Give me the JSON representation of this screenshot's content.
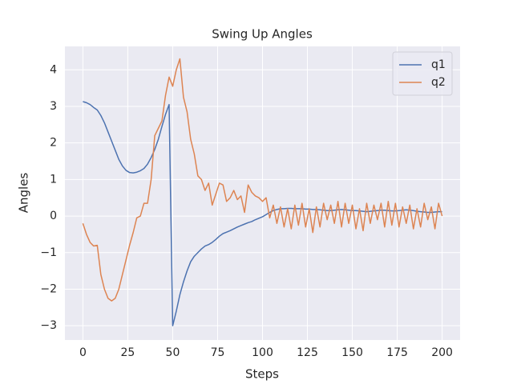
{
  "chart_data": {
    "type": "line",
    "title": "Swing Up Angles",
    "x_label": "Steps",
    "y_label": "Angles",
    "x": [
      0,
      2,
      4,
      6,
      8,
      10,
      12,
      14,
      16,
      18,
      20,
      22,
      24,
      26,
      28,
      30,
      32,
      34,
      36,
      38,
      40,
      42,
      44,
      46,
      48,
      50,
      52,
      54,
      56,
      58,
      60,
      62,
      64,
      66,
      68,
      70,
      72,
      74,
      76,
      78,
      80,
      82,
      84,
      86,
      88,
      90,
      92,
      94,
      96,
      98,
      100,
      102,
      104,
      106,
      108,
      110,
      112,
      114,
      116,
      118,
      120,
      122,
      124,
      126,
      128,
      130,
      132,
      134,
      136,
      138,
      140,
      142,
      144,
      146,
      148,
      150,
      152,
      154,
      156,
      158,
      160,
      162,
      164,
      166,
      168,
      170,
      172,
      174,
      176,
      178,
      180,
      182,
      184,
      186,
      188,
      190,
      192,
      194,
      196,
      198,
      200
    ],
    "series": [
      {
        "name": "q1",
        "color": "#4c72b0",
        "values": [
          3.13,
          3.1,
          3.05,
          2.97,
          2.9,
          2.75,
          2.55,
          2.3,
          2.05,
          1.8,
          1.55,
          1.37,
          1.25,
          1.19,
          1.18,
          1.2,
          1.24,
          1.3,
          1.42,
          1.6,
          1.82,
          2.1,
          2.45,
          2.78,
          3.05,
          -3.0,
          -2.6,
          -2.15,
          -1.8,
          -1.5,
          -1.25,
          -1.1,
          -1.0,
          -0.9,
          -0.82,
          -0.78,
          -0.72,
          -0.64,
          -0.55,
          -0.48,
          -0.44,
          -0.4,
          -0.35,
          -0.3,
          -0.26,
          -0.22,
          -0.18,
          -0.15,
          -0.1,
          -0.06,
          -0.02,
          0.04,
          0.1,
          0.15,
          0.18,
          0.2,
          0.2,
          0.21,
          0.21,
          0.2,
          0.2,
          0.2,
          0.19,
          0.19,
          0.18,
          0.18,
          0.17,
          0.16,
          0.15,
          0.15,
          0.16,
          0.17,
          0.18,
          0.17,
          0.16,
          0.15,
          0.15,
          0.14,
          0.13,
          0.12,
          0.13,
          0.14,
          0.15,
          0.16,
          0.16,
          0.15,
          0.14,
          0.14,
          0.15,
          0.16,
          0.17,
          0.16,
          0.15,
          0.13,
          0.12,
          0.11,
          0.1,
          0.1,
          0.11,
          0.12,
          0.12
        ]
      },
      {
        "name": "q2",
        "color": "#dd8452",
        "values": [
          -0.2,
          -0.5,
          -0.72,
          -0.82,
          -0.8,
          -1.6,
          -2.0,
          -2.25,
          -2.32,
          -2.25,
          -2.0,
          -1.6,
          -1.2,
          -0.8,
          -0.45,
          -0.05,
          0.0,
          0.35,
          0.35,
          1.0,
          2.2,
          2.4,
          2.6,
          3.3,
          3.8,
          3.55,
          4.0,
          4.3,
          3.25,
          2.85,
          2.1,
          1.7,
          1.1,
          1.0,
          0.7,
          0.9,
          0.3,
          0.6,
          0.9,
          0.85,
          0.4,
          0.5,
          0.7,
          0.45,
          0.55,
          0.1,
          0.85,
          0.65,
          0.55,
          0.5,
          0.4,
          0.5,
          -0.05,
          0.3,
          -0.2,
          0.25,
          -0.3,
          0.2,
          -0.35,
          0.3,
          -0.25,
          0.35,
          -0.3,
          0.2,
          -0.45,
          0.25,
          -0.3,
          0.35,
          -0.1,
          0.3,
          -0.2,
          0.4,
          -0.3,
          0.35,
          -0.2,
          0.3,
          -0.35,
          0.2,
          -0.4,
          0.35,
          -0.2,
          0.3,
          -0.1,
          0.35,
          -0.3,
          0.4,
          -0.25,
          0.35,
          -0.3,
          0.25,
          -0.2,
          0.3,
          -0.35,
          0.2,
          -0.3,
          0.35,
          -0.1,
          0.25,
          -0.35,
          0.35,
          0.0
        ]
      }
    ],
    "xlim": [
      -10,
      210
    ],
    "ylim": [
      -3.39,
      4.64
    ],
    "xticks": [
      0,
      25,
      50,
      75,
      100,
      125,
      150,
      175,
      200
    ],
    "yticks": [
      {
        "value": -3,
        "label": "−3"
      },
      {
        "value": -2,
        "label": "−2"
      },
      {
        "value": -1,
        "label": "−1"
      },
      0,
      1,
      2,
      3,
      4
    ],
    "grid": true,
    "legend": "upper right"
  }
}
